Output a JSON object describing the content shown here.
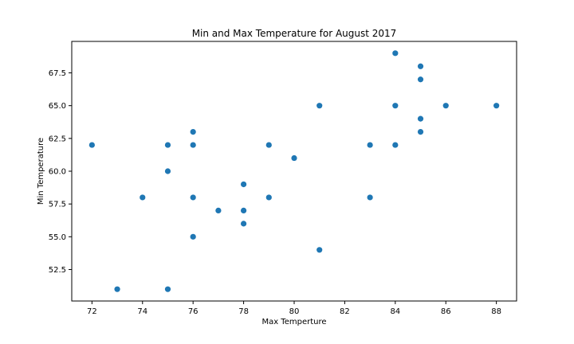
{
  "chart_data": {
    "type": "scatter",
    "title": "Min and Max Temperature for August 2017",
    "xlabel": "Max Temperture",
    "ylabel": "Min Temperature",
    "xlim": [
      71.2,
      88.8
    ],
    "ylim": [
      50.1,
      69.9
    ],
    "xticks": [
      72,
      74,
      76,
      78,
      80,
      82,
      84,
      86,
      88
    ],
    "yticks": [
      52.5,
      55.0,
      57.5,
      60.0,
      62.5,
      65.0,
      67.5
    ],
    "xtick_labels": [
      "72",
      "74",
      "76",
      "78",
      "80",
      "82",
      "84",
      "86",
      "88"
    ],
    "ytick_labels": [
      "52.5",
      "55.0",
      "57.5",
      "60.0",
      "62.5",
      "65.0",
      "67.5"
    ],
    "grid": false,
    "legend": false,
    "marker_color": "#1f77b4",
    "points": [
      {
        "x": 72,
        "y": 62
      },
      {
        "x": 73,
        "y": 51
      },
      {
        "x": 74,
        "y": 58
      },
      {
        "x": 75,
        "y": 62
      },
      {
        "x": 75,
        "y": 60
      },
      {
        "x": 75,
        "y": 51
      },
      {
        "x": 76,
        "y": 63
      },
      {
        "x": 76,
        "y": 62
      },
      {
        "x": 76,
        "y": 58
      },
      {
        "x": 76,
        "y": 55
      },
      {
        "x": 77,
        "y": 57
      },
      {
        "x": 78,
        "y": 59
      },
      {
        "x": 78,
        "y": 57
      },
      {
        "x": 78,
        "y": 56
      },
      {
        "x": 79,
        "y": 62
      },
      {
        "x": 79,
        "y": 58
      },
      {
        "x": 80,
        "y": 61
      },
      {
        "x": 81,
        "y": 65
      },
      {
        "x": 81,
        "y": 54
      },
      {
        "x": 83,
        "y": 62
      },
      {
        "x": 83,
        "y": 58
      },
      {
        "x": 84,
        "y": 69
      },
      {
        "x": 84,
        "y": 65
      },
      {
        "x": 84,
        "y": 62
      },
      {
        "x": 85,
        "y": 68
      },
      {
        "x": 85,
        "y": 67
      },
      {
        "x": 85,
        "y": 64
      },
      {
        "x": 85,
        "y": 63
      },
      {
        "x": 86,
        "y": 65
      },
      {
        "x": 88,
        "y": 65
      }
    ]
  }
}
